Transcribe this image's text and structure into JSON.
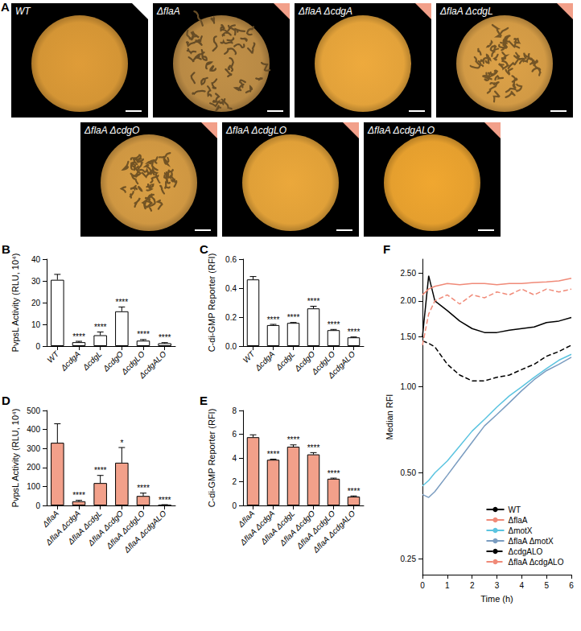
{
  "image_panel": {
    "panel_label": "A",
    "images": [
      {
        "label": "WT",
        "corner_color": "#ffffff",
        "colony_color": "#d49535",
        "wrinkled": false
      },
      {
        "label": "ΔflaA",
        "corner_color": "#f2a08a",
        "colony_color": "#b98a45",
        "wrinkled": true
      },
      {
        "label": "ΔflaA ΔcdgA",
        "corner_color": "#f2a08a",
        "colony_color": "#e3a23a",
        "wrinkled": false
      },
      {
        "label": "ΔflaA ΔcdgL",
        "corner_color": "#f2a08a",
        "colony_color": "#d29a45",
        "wrinkled": true
      },
      {
        "label": "ΔflaA ΔcdgO",
        "corner_color": "#f2a08a",
        "colony_color": "#cf9742",
        "wrinkled": true
      },
      {
        "label": "ΔflaA ΔcdgLO",
        "corner_color": "#f2a08a",
        "colony_color": "#e0a038",
        "wrinkled": false
      },
      {
        "label": "ΔflaA ΔcdgALO",
        "corner_color": "#f2a08a",
        "colony_color": "#e59f2e",
        "wrinkled": false
      }
    ]
  },
  "chart_data": [
    {
      "panel_label": "B",
      "type": "bar",
      "ylabel": "PvpsL Activity (RLU, 10⁴)",
      "categories": [
        "WT",
        "ΔcdgA",
        "ΔcdgL",
        "ΔcdgO",
        "ΔcdgLO",
        "ΔcdgALO"
      ],
      "values": [
        30.5,
        1.8,
        5,
        16,
        2.5,
        1.3
      ],
      "errors": [
        2.5,
        0.4,
        1.5,
        2,
        0.5,
        0.3
      ],
      "significance": [
        null,
        "****",
        "****",
        "****",
        "****",
        "****"
      ],
      "color": "#ffffff",
      "ylim": [
        0,
        40
      ],
      "yticks": [
        0,
        10,
        20,
        30,
        40
      ]
    },
    {
      "panel_label": "C",
      "type": "bar",
      "ylabel": "C-di-GMP Reporter (RFI)",
      "categories": [
        "WT",
        "ΔcdgA",
        "ΔcdgL",
        "ΔcdgO",
        "ΔcdgLO",
        "ΔcdgALO"
      ],
      "values": [
        0.46,
        0.145,
        0.16,
        0.26,
        0.11,
        0.06
      ],
      "errors": [
        0.02,
        0.005,
        0.003,
        0.015,
        0.005,
        0.003
      ],
      "significance": [
        null,
        "****",
        "****",
        "****",
        "****",
        "****"
      ],
      "color": "#ffffff",
      "ylim": [
        0,
        0.6
      ],
      "yticks": [
        {
          "value": 0,
          "label": "0.0"
        },
        0.2,
        0.4,
        0.6
      ]
    },
    {
      "panel_label": "D",
      "type": "bar",
      "ylabel": "PvpsL Activity (RLU, 10⁴)",
      "categories": [
        "ΔflaA",
        "ΔflaA ΔcdgA",
        "ΔflaA ΔcdgL",
        "ΔflaA ΔcdgO",
        "ΔflaA ΔcdgLO",
        "ΔflaA ΔcdgALO"
      ],
      "values": [
        330,
        22,
        118,
        225,
        50,
        3
      ],
      "errors": [
        100,
        5,
        40,
        80,
        15,
        1
      ],
      "significance": [
        null,
        "****",
        "****",
        "*",
        "****",
        "****"
      ],
      "color": "#f2a08a",
      "ylim": [
        0,
        500
      ],
      "yticks": [
        0,
        100,
        200,
        300,
        400,
        500
      ]
    },
    {
      "panel_label": "E",
      "type": "bar",
      "ylabel": "C-di-GMP Reporter (RFI)",
      "categories": [
        "ΔflaA",
        "ΔflaA ΔcdgA",
        "ΔflaA ΔcdgL",
        "ΔflaA ΔcdgO",
        "ΔflaA ΔcdgLO",
        "ΔflaA ΔcdgALO"
      ],
      "values": [
        5.75,
        3.85,
        4.95,
        4.3,
        2.25,
        0.75
      ],
      "errors": [
        0.2,
        0.05,
        0.15,
        0.15,
        0.05,
        0.05
      ],
      "significance": [
        null,
        "****",
        "****",
        "****",
        "****",
        "****"
      ],
      "color": "#f2a08a",
      "ylim": [
        0,
        8
      ],
      "yticks": [
        0,
        2,
        4,
        6,
        8
      ]
    },
    {
      "panel_label": "F",
      "type": "line",
      "xlabel": "Time (h)",
      "ylabel": "Median RFI",
      "x": [
        0,
        0.25,
        0.5,
        1,
        1.5,
        2,
        2.5,
        3,
        3.5,
        4,
        4.5,
        5,
        5.5,
        6
      ],
      "series": [
        {
          "name": "WT",
          "color": "#000000",
          "line_style": "solid",
          "values": [
            1.5,
            2.45,
            2.0,
            1.85,
            1.7,
            1.6,
            1.55,
            1.55,
            1.58,
            1.6,
            1.62,
            1.68,
            1.7,
            1.75
          ]
        },
        {
          "name": "ΔflaA",
          "color": "#f08a78",
          "line_style": "solid",
          "values": [
            2.1,
            2.2,
            2.25,
            2.3,
            2.28,
            2.3,
            2.3,
            2.28,
            2.3,
            2.3,
            2.32,
            2.33,
            2.35,
            2.4
          ]
        },
        {
          "name": "ΔmotX",
          "color": "#5bc4e0",
          "line_style": "solid",
          "values": [
            0.45,
            0.47,
            0.5,
            0.55,
            0.62,
            0.7,
            0.77,
            0.85,
            0.93,
            1.0,
            1.08,
            1.16,
            1.24,
            1.3
          ]
        },
        {
          "name": "ΔflaA ΔmotX",
          "color": "#7a9cc0",
          "line_style": "solid",
          "values": [
            0.42,
            0.41,
            0.43,
            0.49,
            0.56,
            0.64,
            0.73,
            0.8,
            0.88,
            0.97,
            1.06,
            1.14,
            1.2,
            1.27
          ]
        },
        {
          "name": "ΔcdgALO",
          "color": "#000000",
          "line_style": "dashed",
          "values": [
            1.45,
            1.42,
            1.38,
            1.2,
            1.1,
            1.05,
            1.05,
            1.08,
            1.1,
            1.15,
            1.2,
            1.28,
            1.33,
            1.4
          ]
        },
        {
          "name": "ΔflaA ΔcdgALO",
          "color": "#f08a78",
          "line_style": "dashed",
          "values": [
            1.4,
            1.8,
            2.0,
            2.1,
            1.95,
            2.1,
            2.05,
            2.15,
            2.1,
            2.2,
            2.1,
            2.2,
            2.15,
            2.2
          ]
        }
      ],
      "xlim": [
        0,
        6
      ],
      "xticks": [
        0,
        1,
        2,
        3,
        4,
        5,
        6
      ],
      "ylim": [
        0.22,
        2.8
      ],
      "yticks": [
        0.25,
        {
          "value": 0.5,
          "label": "0.50"
        },
        {
          "value": 1,
          "label": "1.00"
        },
        {
          "value": 1.5,
          "label": "1.50"
        },
        {
          "value": 2,
          "label": "2.00"
        },
        {
          "value": 2.5,
          "label": "2.50"
        }
      ],
      "log": "y",
      "legend": "lower right"
    }
  ]
}
